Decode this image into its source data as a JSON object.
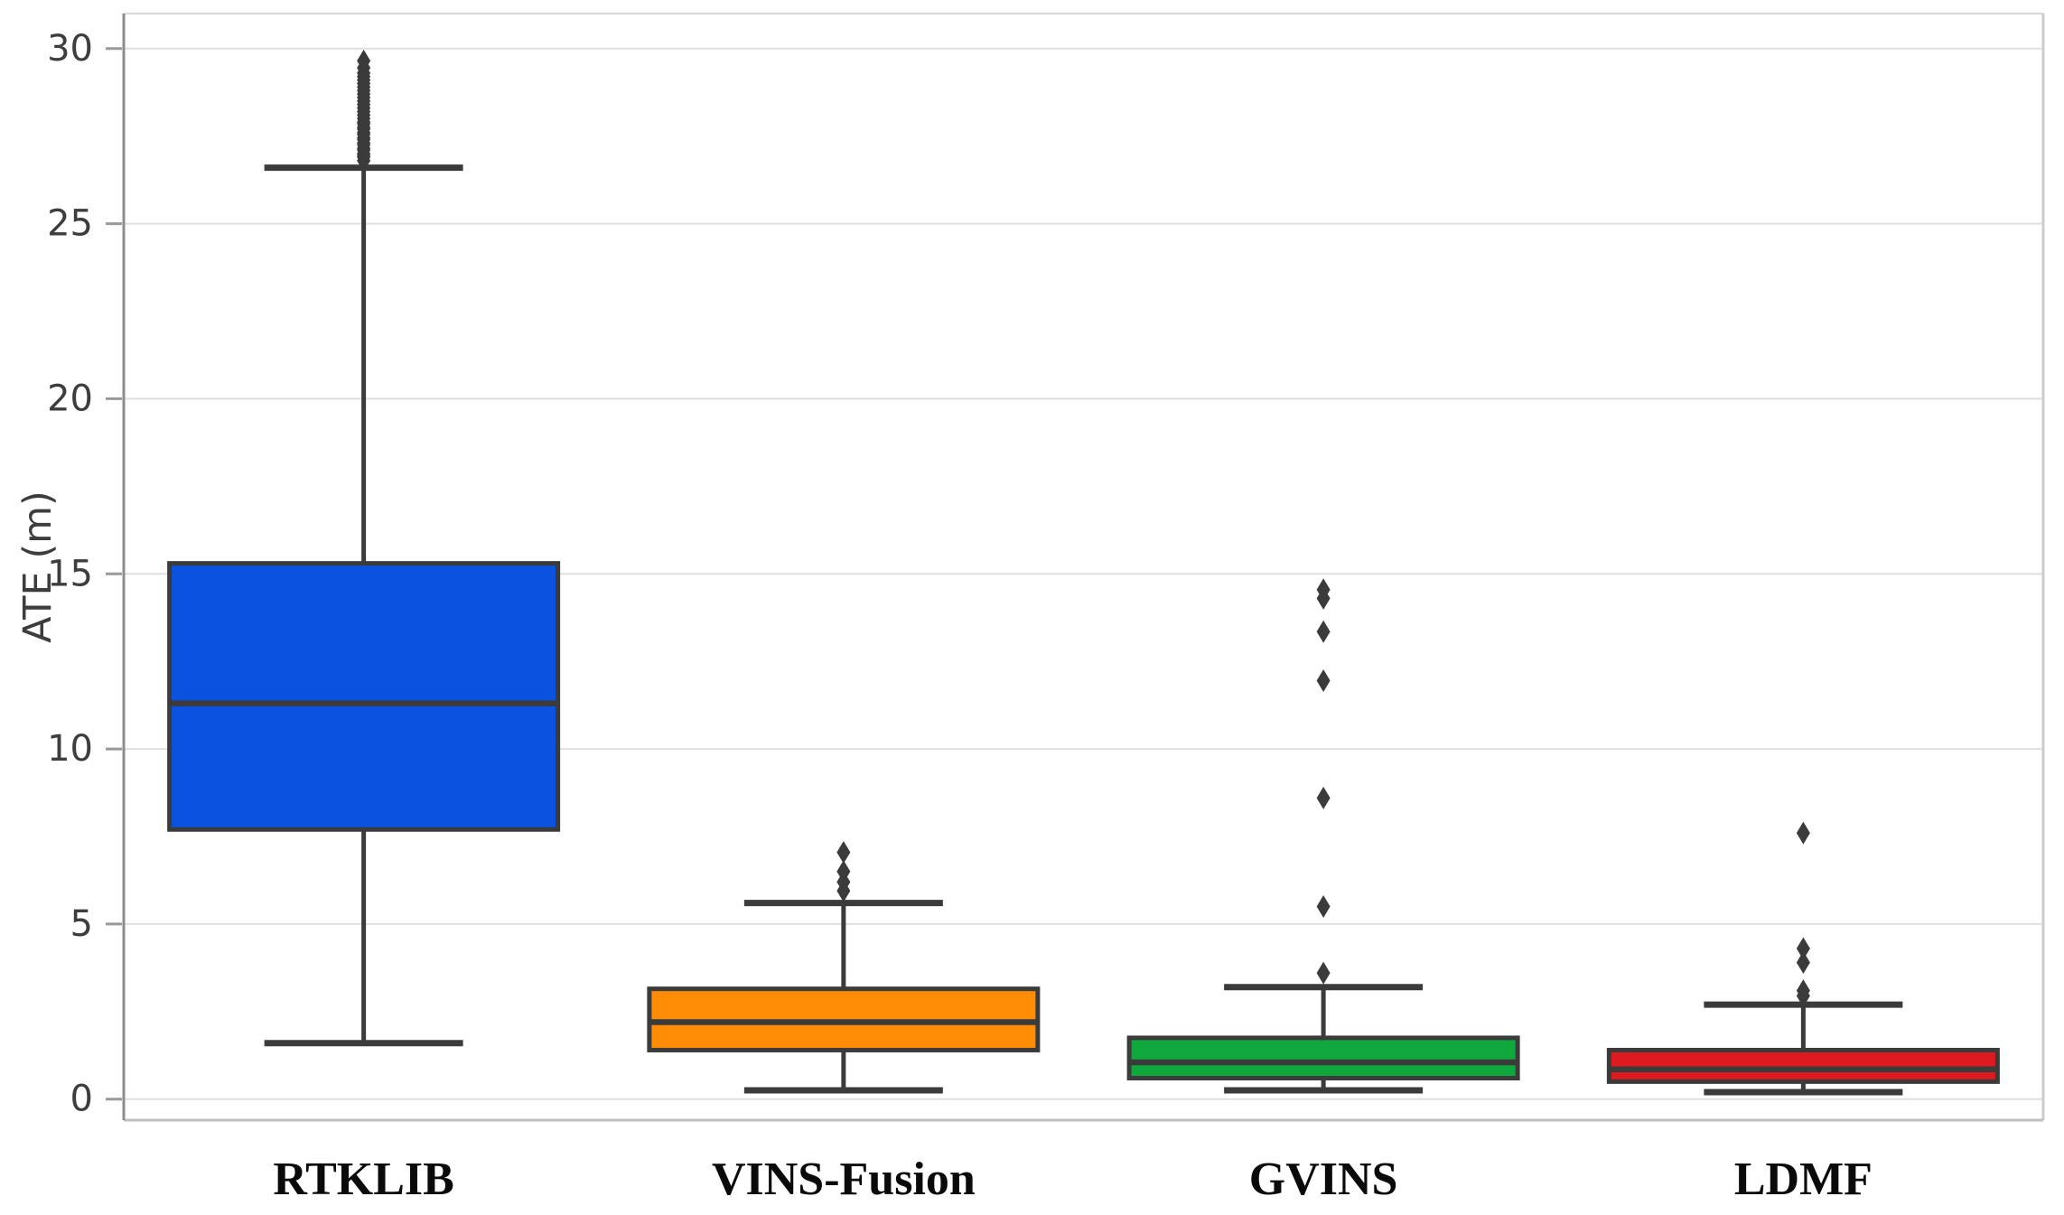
{
  "chart_data": {
    "type": "box",
    "title": "",
    "xlabel": "",
    "ylabel": "ATE (m)",
    "ylim": [
      -0.6,
      31.0
    ],
    "yticks": [
      0,
      5,
      10,
      15,
      20,
      25,
      30
    ],
    "grid": "horizontal",
    "legend": "none",
    "categories": [
      "RTKLIB",
      "VINS-Fusion",
      "GVINS",
      "LDMF"
    ],
    "series": [
      {
        "name": "RTKLIB",
        "color": "#0A53DE",
        "whisker_low": 1.6,
        "q1": 7.7,
        "median": 11.3,
        "q3": 15.3,
        "whisker_high": 26.6,
        "outliers": [
          26.8,
          26.9,
          26.95,
          27.0,
          27.1,
          27.15,
          27.25,
          27.3,
          27.4,
          27.45,
          27.55,
          27.6,
          27.7,
          27.75,
          27.85,
          27.9,
          28.0,
          28.1,
          28.2,
          28.3,
          28.4,
          28.5,
          28.6,
          28.7,
          28.8,
          28.9,
          29.0,
          29.1,
          29.2,
          29.3,
          29.45,
          29.65
        ]
      },
      {
        "name": "VINS-Fusion",
        "color": "#FF8C04",
        "whisker_low": 0.25,
        "q1": 1.4,
        "median": 2.2,
        "q3": 3.15,
        "whisker_high": 5.6,
        "outliers": [
          5.95,
          6.2,
          6.5,
          7.05
        ]
      },
      {
        "name": "GVINS",
        "color": "#0FA83C",
        "whisker_low": 0.25,
        "q1": 0.6,
        "median": 1.05,
        "q3": 1.75,
        "whisker_high": 3.2,
        "outliers": [
          3.6,
          5.5,
          8.6,
          11.95,
          13.35,
          14.3,
          14.55
        ]
      },
      {
        "name": "LDMF",
        "color": "#DC1A20",
        "whisker_low": 0.2,
        "q1": 0.5,
        "median": 0.85,
        "q3": 1.4,
        "whisker_high": 2.7,
        "outliers": [
          2.95,
          3.1,
          3.9,
          4.3,
          7.6
        ]
      }
    ],
    "style": {
      "box_edge_color": "#3B3B3B",
      "grid_color": "#DFDFDF",
      "spine_left_color": "#8C8C8C",
      "spine_bottom_color": "#BFBFBF",
      "spine_top_color": "#D9D9D9",
      "spine_right_color": "#CCCCCC",
      "tick_color": "#999999",
      "background": "#FFFFFF"
    }
  }
}
